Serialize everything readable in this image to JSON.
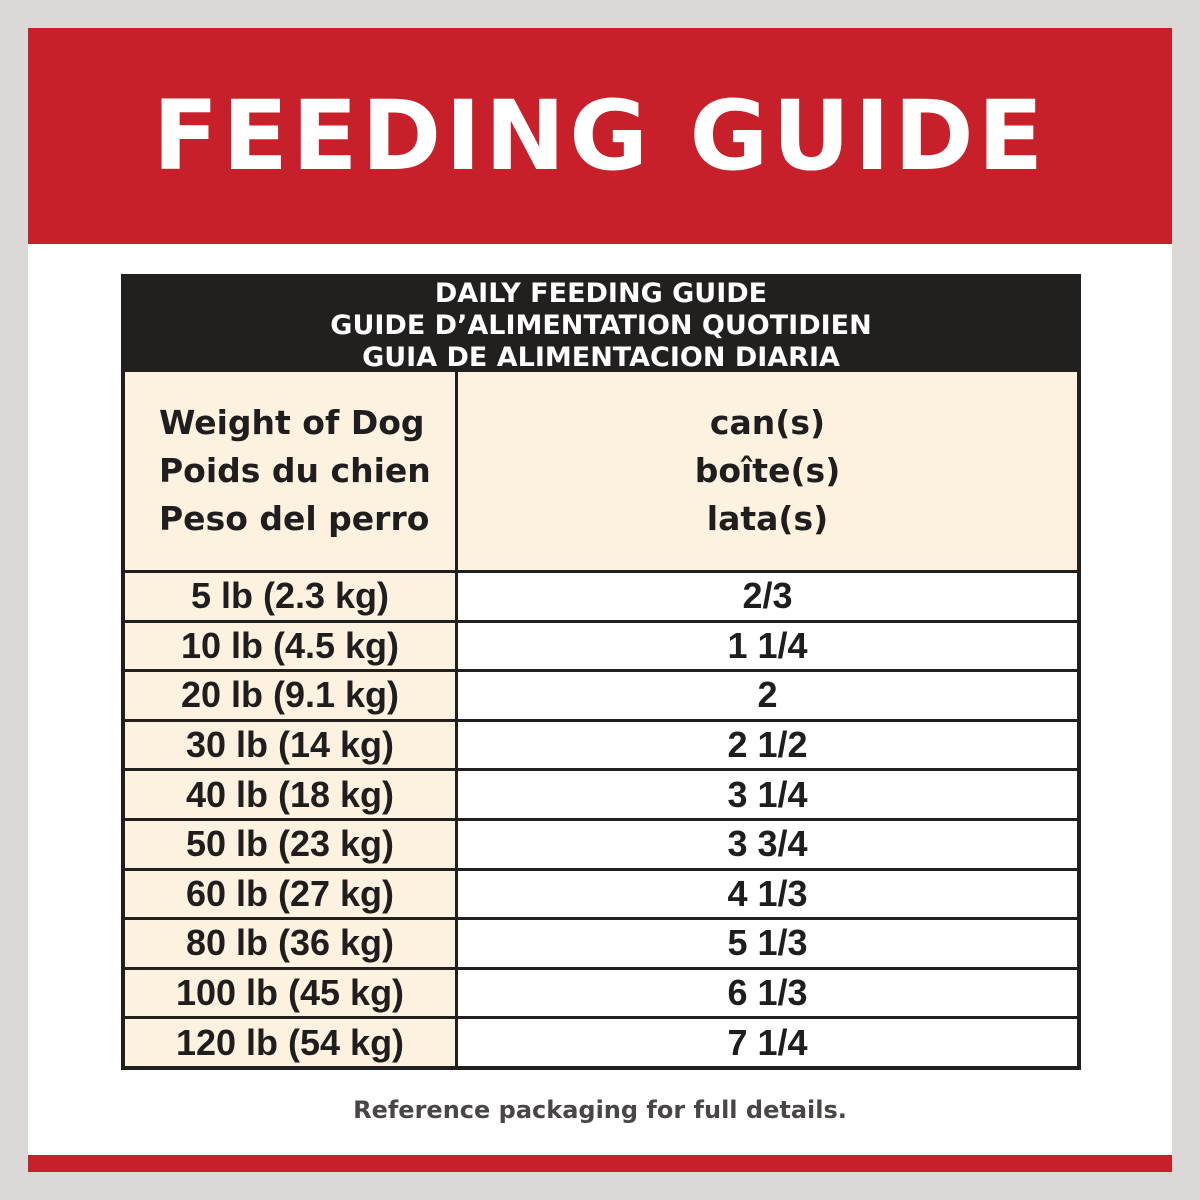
{
  "banner": {
    "title": "FEEDING GUIDE"
  },
  "table": {
    "title_lines": [
      "DAILY FEEDING GUIDE",
      "GUIDE D’ALIMENTATION QUOTIDIEN",
      "GUIA DE ALIMENTACION DIARIA"
    ],
    "weight_header": [
      "Weight of Dog",
      "Poids du chien",
      "Peso del perro"
    ],
    "amount_header": [
      "can(s)",
      "boîte(s)",
      "lata(s)"
    ],
    "rows": [
      {
        "weight": "5 lb (2.3 kg)",
        "cans": "2/3"
      },
      {
        "weight": "10 lb (4.5 kg)",
        "cans": "1 1/4"
      },
      {
        "weight": "20 lb (9.1 kg)",
        "cans": "2"
      },
      {
        "weight": "30 lb (14 kg)",
        "cans": "2 1/2"
      },
      {
        "weight": "40 lb (18 kg)",
        "cans": "3 1/4"
      },
      {
        "weight": "50 lb (23 kg)",
        "cans": "3 3/4"
      },
      {
        "weight": "60 lb (27 kg)",
        "cans": "4 1/3"
      },
      {
        "weight": "80 lb (36 kg)",
        "cans": "5 1/3"
      },
      {
        "weight": "100 lb (45 kg)",
        "cans": "6 1/3"
      },
      {
        "weight": "120 lb (54 kg)",
        "cans": "7 1/4"
      }
    ]
  },
  "footer": {
    "note": "Reference packaging for full details."
  },
  "colors": {
    "brand_red": "#c8202a",
    "header_black": "#221f1f",
    "cream": "#fdf2e0",
    "background_gray": "#dcd8d8"
  }
}
